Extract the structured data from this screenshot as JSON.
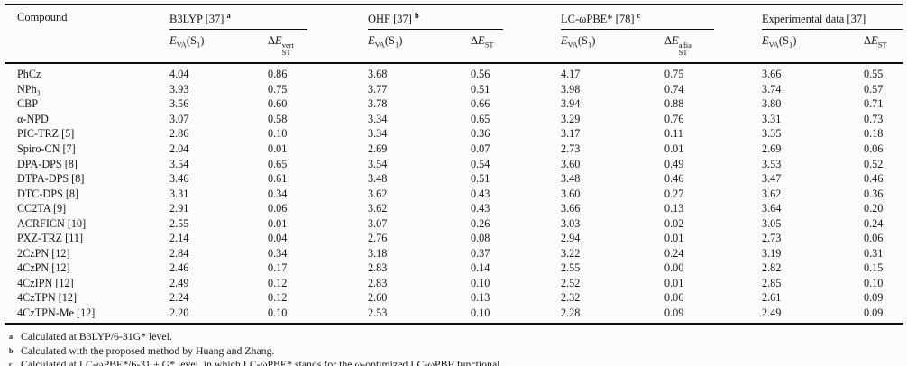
{
  "table": {
    "compound_header": "Compound",
    "groups": [
      {
        "key": "b3lyp",
        "label": "B3LYP [37]",
        "marker": "a",
        "delta_sup": "vert"
      },
      {
        "key": "ohf",
        "label": "OHF [37]",
        "marker": "b",
        "delta_sup": ""
      },
      {
        "key": "lcwpbe",
        "label": "LC-ωPBE* [78]",
        "marker": "c",
        "delta_sup": "adia"
      },
      {
        "key": "experimental",
        "label": "Experimental data [37]",
        "marker": "",
        "delta_sup": ""
      }
    ],
    "symbols": {
      "eva": {
        "e": "E",
        "sub": "VA",
        "arg_open": "(S",
        "arg_sub": "1",
        "arg_close": ")"
      },
      "delta": {
        "prefix": "Δ",
        "e": "E",
        "sub": "ST"
      }
    },
    "rows": [
      {
        "compound": "PhCz",
        "values": [
          "4.04",
          "0.86",
          "3.68",
          "0.56",
          "4.17",
          "0.75",
          "3.66",
          "0.55"
        ]
      },
      {
        "compound": "NPh₃",
        "values": [
          "3.93",
          "0.75",
          "3.77",
          "0.51",
          "3.98",
          "0.74",
          "3.74",
          "0.57"
        ]
      },
      {
        "compound": "CBP",
        "values": [
          "3.56",
          "0.60",
          "3.78",
          "0.66",
          "3.94",
          "0.88",
          "3.80",
          "0.71"
        ]
      },
      {
        "compound": "α-NPD",
        "values": [
          "3.07",
          "0.58",
          "3.34",
          "0.65",
          "3.29",
          "0.76",
          "3.31",
          "0.73"
        ]
      },
      {
        "compound": "PIC-TRZ [5]",
        "values": [
          "2.86",
          "0.10",
          "3.34",
          "0.36",
          "3.17",
          "0.11",
          "3.35",
          "0.18"
        ]
      },
      {
        "compound": "Spiro-CN [7]",
        "values": [
          "2.04",
          "0.01",
          "2.69",
          "0.07",
          "2.73",
          "0.01",
          "2.69",
          "0.06"
        ]
      },
      {
        "compound": "DPA-DPS [8]",
        "values": [
          "3.54",
          "0.65",
          "3.54",
          "0.54",
          "3.60",
          "0.49",
          "3.53",
          "0.52"
        ]
      },
      {
        "compound": "DTPA-DPS [8]",
        "values": [
          "3.46",
          "0.61",
          "3.48",
          "0.51",
          "3.48",
          "0.46",
          "3.47",
          "0.46"
        ]
      },
      {
        "compound": "DTC-DPS [8]",
        "values": [
          "3.31",
          "0.34",
          "3.62",
          "0.43",
          "3.60",
          "0.27",
          "3.62",
          "0.36"
        ]
      },
      {
        "compound": "CC2TA [9]",
        "values": [
          "2.91",
          "0.06",
          "3.62",
          "0.43",
          "3.66",
          "0.13",
          "3.64",
          "0.20"
        ]
      },
      {
        "compound": "ACRFICN [10]",
        "values": [
          "2.55",
          "0.01",
          "3.07",
          "0.26",
          "3.03",
          "0.02",
          "3.05",
          "0.24"
        ]
      },
      {
        "compound": "PXZ-TRZ [11]",
        "values": [
          "2.14",
          "0.04",
          "2.76",
          "0.08",
          "2.94",
          "0.01",
          "2.73",
          "0.06"
        ]
      },
      {
        "compound": "2CzPN [12]",
        "values": [
          "2.84",
          "0.34",
          "3.18",
          "0.37",
          "3.22",
          "0.24",
          "3.19",
          "0.31"
        ]
      },
      {
        "compound": "4CzPN [12]",
        "values": [
          "2.46",
          "0.17",
          "2.83",
          "0.14",
          "2.55",
          "0.00",
          "2.82",
          "0.15"
        ]
      },
      {
        "compound": "4CzIPN [12]",
        "values": [
          "2.49",
          "0.12",
          "2.83",
          "0.10",
          "2.52",
          "0.01",
          "2.85",
          "0.10"
        ]
      },
      {
        "compound": "4CzTPN [12]",
        "values": [
          "2.24",
          "0.12",
          "2.60",
          "0.13",
          "2.32",
          "0.06",
          "2.61",
          "0.09"
        ]
      },
      {
        "compound": "4CzTPN-Me [12]",
        "values": [
          "2.20",
          "0.10",
          "2.53",
          "0.10",
          "2.28",
          "0.09",
          "2.49",
          "0.09"
        ]
      }
    ]
  },
  "footnotes": [
    {
      "marker": "a",
      "text": "Calculated at B3LYP/6-31G* level."
    },
    {
      "marker": "b",
      "text": "Calculated with the proposed method by Huang and Zhang."
    },
    {
      "marker": "c",
      "text": "Calculated at LC-ωPBE*/6-31 + G* level, in which LC-ωPBE* stands for the ω-optimized LC-ωPBE functional."
    }
  ]
}
